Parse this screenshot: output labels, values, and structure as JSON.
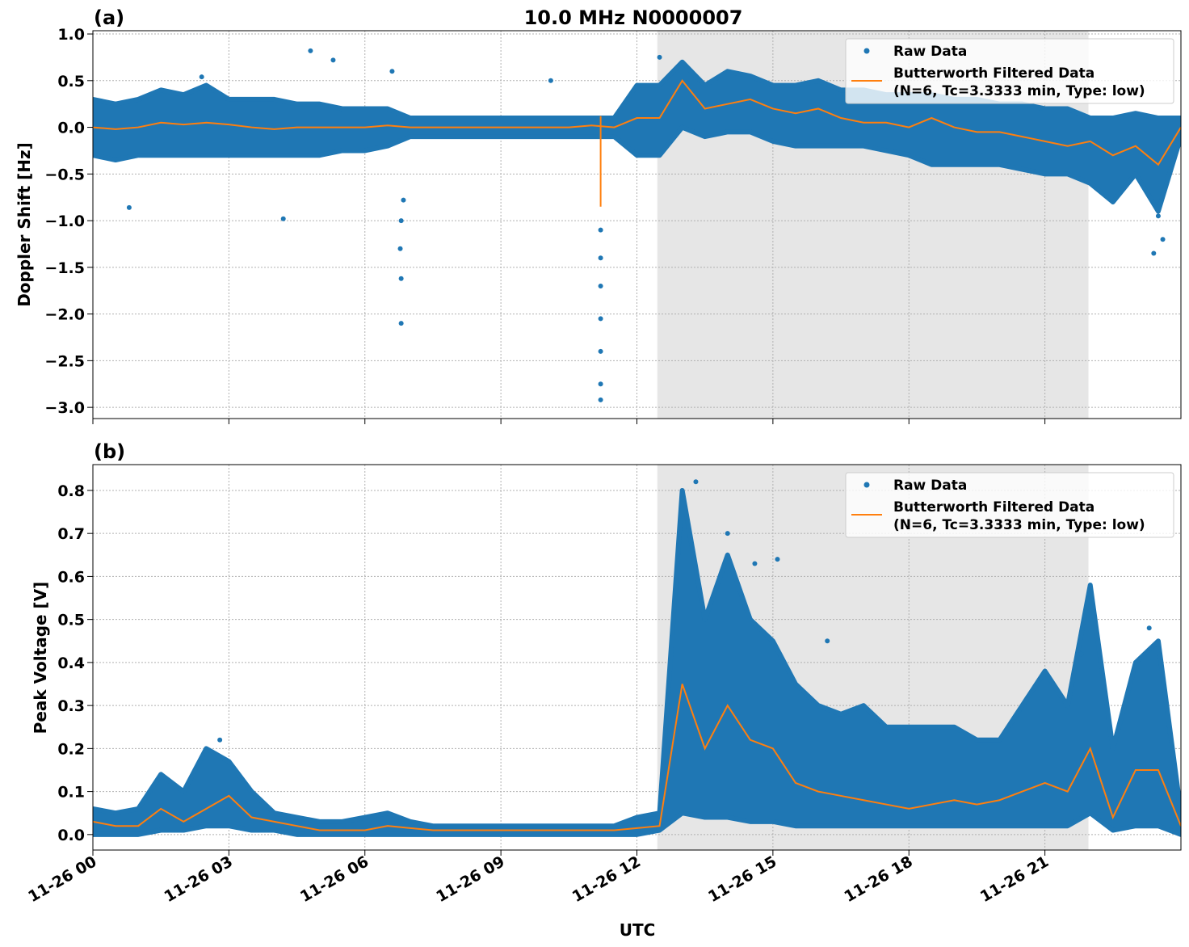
{
  "title": "10.0 MHz N0000007",
  "xlabel": "UTC",
  "colors": {
    "raw": "#1f77b4",
    "filtered": "#ff7f0e",
    "shade": "#e6e6e6",
    "grid": "#b0b0b0"
  },
  "legend": {
    "raw": "Raw Data",
    "filtered_line1": "Butterworth Filtered Data",
    "filtered_line2": "(N=6, Tc=3.3333 min, Type: low)",
    "placement": "top-right"
  },
  "x_ticks": [
    "11-26 00",
    "11-26 03",
    "11-26 06",
    "11-26 09",
    "11-26 12",
    "11-26 15",
    "11-26 18",
    "11-26 21"
  ],
  "chart_data": [
    {
      "type": "scatter+line",
      "panel_label": "(a)",
      "ylabel": "Doppler Shift [Hz]",
      "xlim_hours_utc": [
        0,
        24
      ],
      "ylim": [
        -3.12,
        1.035
      ],
      "y_ticks": [
        1.0,
        0.5,
        0.0,
        -0.5,
        -1.0,
        -1.5,
        -2.0,
        -2.5,
        -3.0
      ],
      "y_tick_labels": [
        "1.0",
        "0.5",
        "0.0",
        "−0.5",
        "−1.0",
        "−1.5",
        "−2.0",
        "−2.5",
        "−3.0"
      ],
      "grid": true,
      "shaded_span_hours_utc": [
        12.45,
        21.96
      ],
      "x_hours_utc": [
        0,
        0.5,
        1,
        1.5,
        2,
        2.5,
        3,
        3.5,
        4,
        4.5,
        5,
        5.5,
        6,
        6.5,
        7,
        7.5,
        8,
        8.5,
        9,
        9.5,
        10,
        10.5,
        11,
        11.5,
        12,
        12.5,
        13,
        13.5,
        14,
        14.5,
        15,
        15.5,
        16,
        16.5,
        17,
        17.5,
        18,
        18.5,
        19,
        19.5,
        20,
        20.5,
        21,
        21.5,
        22,
        22.5,
        23,
        23.5,
        24
      ],
      "filtered": [
        0,
        -0.02,
        0,
        0.05,
        0.03,
        0.05,
        0.03,
        0,
        -0.02,
        0,
        0,
        0,
        0,
        0.02,
        0,
        0,
        0,
        0,
        0,
        0,
        0,
        0,
        0.02,
        0,
        0.1,
        0.1,
        0.5,
        0.2,
        0.25,
        0.3,
        0.2,
        0.15,
        0.2,
        0.1,
        0.05,
        0.05,
        0,
        0.1,
        0,
        -0.05,
        -0.05,
        -0.1,
        -0.15,
        -0.2,
        -0.15,
        -0.3,
        -0.2,
        -0.4,
        0
      ],
      "raw_low": [
        -0.3,
        -0.35,
        -0.3,
        -0.3,
        -0.3,
        -0.3,
        -0.3,
        -0.3,
        -0.3,
        -0.3,
        -0.3,
        -0.25,
        -0.25,
        -0.2,
        -0.1,
        -0.1,
        -0.1,
        -0.1,
        -0.1,
        -0.1,
        -0.1,
        -0.1,
        -0.1,
        -0.1,
        -0.3,
        -0.3,
        0,
        -0.1,
        -0.05,
        -0.05,
        -0.15,
        -0.2,
        -0.2,
        -0.2,
        -0.2,
        -0.25,
        -0.3,
        -0.4,
        -0.4,
        -0.4,
        -0.4,
        -0.45,
        -0.5,
        -0.5,
        -0.6,
        -0.8,
        -0.5,
        -0.9,
        -0.1
      ],
      "raw_high": [
        0.3,
        0.25,
        0.3,
        0.4,
        0.35,
        0.45,
        0.3,
        0.3,
        0.3,
        0.25,
        0.25,
        0.2,
        0.2,
        0.2,
        0.1,
        0.1,
        0.1,
        0.1,
        0.1,
        0.1,
        0.1,
        0.1,
        0.1,
        0.1,
        0.45,
        0.45,
        0.7,
        0.45,
        0.6,
        0.55,
        0.45,
        0.45,
        0.5,
        0.4,
        0.4,
        0.35,
        0.35,
        0.35,
        0.3,
        0.3,
        0.25,
        0.25,
        0.2,
        0.2,
        0.1,
        0.1,
        0.15,
        0.1,
        0.1
      ],
      "spike": {
        "x_hours_utc": 11.2,
        "filtered_range": [
          -0.85,
          0.12
        ]
      },
      "raw_outliers": [
        [
          11.2,
          -2.92
        ],
        [
          11.2,
          -2.75
        ],
        [
          11.2,
          -2.4
        ],
        [
          11.2,
          -2.05
        ],
        [
          11.2,
          -1.7
        ],
        [
          11.2,
          -1.4
        ],
        [
          11.2,
          -1.1
        ],
        [
          6.8,
          -2.1
        ],
        [
          6.8,
          -1.62
        ],
        [
          6.78,
          -1.3
        ],
        [
          6.8,
          -1.0
        ],
        [
          6.85,
          -0.78
        ],
        [
          4.2,
          -0.98
        ],
        [
          0.8,
          -0.86
        ],
        [
          4.8,
          0.82
        ],
        [
          5.3,
          0.72
        ],
        [
          6.6,
          0.6
        ],
        [
          10.1,
          0.5
        ],
        [
          2.4,
          0.54
        ],
        [
          23.4,
          -1.35
        ],
        [
          23.6,
          -1.2
        ],
        [
          23.5,
          -0.95
        ],
        [
          12.5,
          0.75
        ]
      ]
    },
    {
      "type": "scatter+line",
      "panel_label": "(b)",
      "ylabel": "Peak Voltage [V]",
      "xlim_hours_utc": [
        0,
        24
      ],
      "ylim": [
        -0.036,
        0.86
      ],
      "y_ticks": [
        0.8,
        0.7,
        0.6,
        0.5,
        0.4,
        0.3,
        0.2,
        0.1,
        0.0
      ],
      "y_tick_labels": [
        "0.8",
        "0.7",
        "0.6",
        "0.5",
        "0.4",
        "0.3",
        "0.2",
        "0.1",
        "0.0"
      ],
      "grid": true,
      "shaded_span_hours_utc": [
        12.45,
        21.96
      ],
      "x_hours_utc": [
        0,
        0.5,
        1,
        1.5,
        2,
        2.5,
        3,
        3.5,
        4,
        4.5,
        5,
        5.5,
        6,
        6.5,
        7,
        7.5,
        8,
        8.5,
        9,
        9.5,
        10,
        10.5,
        11,
        11.5,
        12,
        12.5,
        13,
        13.5,
        14,
        14.5,
        15,
        15.5,
        16,
        16.5,
        17,
        17.5,
        18,
        18.5,
        19,
        19.5,
        20,
        20.5,
        21,
        21.5,
        22,
        22.5,
        23,
        23.5,
        24
      ],
      "filtered": [
        0.03,
        0.02,
        0.02,
        0.06,
        0.03,
        0.06,
        0.09,
        0.04,
        0.03,
        0.02,
        0.01,
        0.01,
        0.01,
        0.02,
        0.015,
        0.01,
        0.01,
        0.01,
        0.01,
        0.01,
        0.01,
        0.01,
        0.01,
        0.01,
        0.015,
        0.02,
        0.35,
        0.2,
        0.3,
        0.22,
        0.2,
        0.12,
        0.1,
        0.09,
        0.08,
        0.07,
        0.06,
        0.07,
        0.08,
        0.07,
        0.08,
        0.1,
        0.12,
        0.1,
        0.2,
        0.04,
        0.15,
        0.15,
        0.02
      ],
      "raw_low": [
        0,
        0,
        0,
        0.01,
        0.01,
        0.02,
        0.02,
        0.01,
        0.01,
        0,
        0,
        0,
        0,
        0,
        0,
        0,
        0,
        0,
        0,
        0,
        0,
        0,
        0,
        0,
        0,
        0.01,
        0.05,
        0.04,
        0.04,
        0.03,
        0.03,
        0.02,
        0.02,
        0.02,
        0.02,
        0.02,
        0.02,
        0.02,
        0.02,
        0.02,
        0.02,
        0.02,
        0.02,
        0.02,
        0.05,
        0.01,
        0.02,
        0.02,
        0
      ],
      "raw_high": [
        0.06,
        0.05,
        0.06,
        0.14,
        0.1,
        0.2,
        0.17,
        0.1,
        0.05,
        0.04,
        0.03,
        0.03,
        0.04,
        0.05,
        0.03,
        0.02,
        0.02,
        0.02,
        0.02,
        0.02,
        0.02,
        0.02,
        0.02,
        0.02,
        0.04,
        0.05,
        0.8,
        0.5,
        0.65,
        0.5,
        0.45,
        0.35,
        0.3,
        0.28,
        0.3,
        0.25,
        0.25,
        0.25,
        0.25,
        0.22,
        0.22,
        0.3,
        0.38,
        0.3,
        0.58,
        0.2,
        0.4,
        0.45,
        0.05
      ],
      "raw_outliers": [
        [
          13.3,
          0.82
        ],
        [
          14.0,
          0.7
        ],
        [
          14.6,
          0.63
        ],
        [
          15.1,
          0.64
        ],
        [
          16.2,
          0.45
        ],
        [
          21.8,
          0.42
        ],
        [
          23.3,
          0.48
        ],
        [
          2.8,
          0.22
        ]
      ]
    }
  ]
}
